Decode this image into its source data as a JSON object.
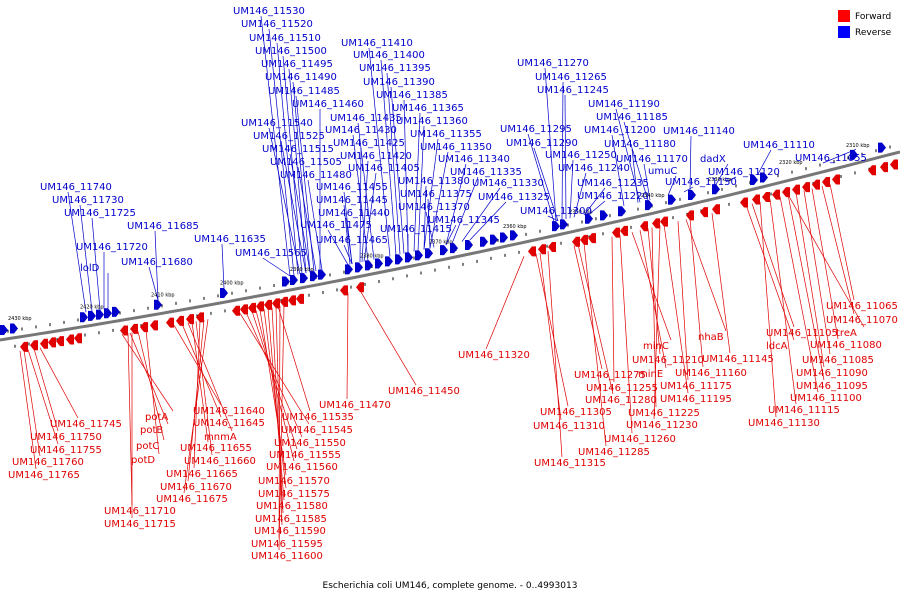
{
  "caption": "Escherichia coli UM146, complete genome. - 0..4993013",
  "legend": [
    {
      "label": "Forward",
      "color": "#ff0000"
    },
    {
      "label": "Reverse",
      "color": "#0000ff"
    }
  ],
  "colors": {
    "forward": "#e00000",
    "reverse": "#0000cc",
    "axis": "#777777"
  },
  "ticks": [
    "2430 kbp",
    "2420 kbp",
    "2410 kbp",
    "2400 kbp",
    "2390 kbp",
    "2380 kbp",
    "2370 kbp",
    "2360 kbp",
    "2350 kbp",
    "2340 kbp",
    "2330 kbp",
    "2320 kbp",
    "2310 kbp"
  ],
  "reverse_labels": [
    "UM146_11530",
    "UM146_11520",
    "UM146_11510",
    "UM146_11500",
    "UM146_11495",
    "UM146_11490",
    "UM146_11485",
    "UM146_11460",
    "UM146_11540",
    "UM146_11525",
    "UM146_11515",
    "UM146_11505",
    "UM146_11480",
    "UM146_11410",
    "UM146_11400",
    "UM146_11395",
    "UM146_11390",
    "UM146_11385",
    "UM146_11365",
    "UM146_11360",
    "UM146_11435",
    "UM146_11430",
    "UM146_11355",
    "UM146_11425",
    "UM146_11350",
    "UM146_11420",
    "UM146_11340",
    "UM146_11405",
    "UM146_11335",
    "UM146_11455",
    "UM146_11380",
    "UM146_11330",
    "UM146_11445",
    "UM146_11375",
    "UM146_11325",
    "UM146_11440",
    "UM146_11370",
    "UM146_11475",
    "UM146_11345",
    "UM146_11415",
    "UM146_11465",
    "UM146_11270",
    "UM146_11265",
    "UM146_11245",
    "UM146_11295",
    "UM146_11290",
    "UM146_11250",
    "UM146_11240",
    "UM146_11235",
    "UM146_11300",
    "UM146_11220",
    "UM146_11190",
    "UM146_11185",
    "UM146_11200",
    "UM146_11180",
    "UM146_11170",
    "umuC",
    "UM146_11150",
    "UM146_11140",
    "dadX",
    "UM146_11120",
    "UM146_11110",
    "UM146_11055",
    "UM146_11740",
    "UM146_11730",
    "UM146_11725",
    "UM146_11685",
    "UM146_11720",
    "lolD",
    "UM146_11680",
    "UM146_11635",
    "UM146_11565"
  ],
  "forward_labels": [
    "UM146_11745",
    "UM146_11750",
    "UM146_11755",
    "UM146_11760",
    "UM146_11765",
    "potA",
    "potB",
    "potC",
    "potD",
    "UM146_11710",
    "UM146_11715",
    "UM146_11640",
    "UM146_11645",
    "mnmA",
    "UM146_11655",
    "UM146_11660",
    "UM146_11665",
    "UM146_11670",
    "UM146_11675",
    "UM146_11535",
    "UM146_11545",
    "UM146_11550",
    "UM146_11555",
    "UM146_11560",
    "UM146_11570",
    "UM146_11575",
    "UM146_11580",
    "UM146_11585",
    "UM146_11590",
    "UM146_11595",
    "UM146_11600",
    "UM146_11470",
    "UM146_11450",
    "UM146_11320",
    "UM146_11305",
    "UM146_11310",
    "UM146_11315",
    "UM146_11275",
    "UM146_11280",
    "UM146_11285",
    "UM146_11255",
    "UM146_11260",
    "minC",
    "minE",
    "UM146_11210",
    "UM146_11225",
    "UM146_11230",
    "UM146_11195",
    "UM146_11175",
    "UM146_11160",
    "nhaB",
    "UM146_11145",
    "ldcA",
    "UM146_11105",
    "treA",
    "UM146_11130",
    "UM146_11115",
    "UM146_11100",
    "UM146_11095",
    "UM146_11090",
    "UM146_11085",
    "UM146_11080",
    "UM146_11070",
    "UM146_11065"
  ]
}
